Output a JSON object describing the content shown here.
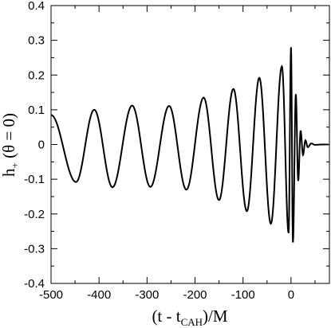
{
  "chart_data": {
    "type": "line",
    "title": "",
    "xlabel": {
      "main": "(t - t",
      "sub": "CAH",
      "tail": ")/M"
    },
    "ylabel": {
      "main": "h",
      "sub": "+",
      "tail": " (θ = 0)"
    },
    "xlim": [
      -500,
      80
    ],
    "ylim": [
      -0.4,
      0.4
    ],
    "grid": false,
    "legend": "none",
    "x_ticks": [
      -500,
      -400,
      -300,
      -200,
      -100,
      0
    ],
    "x_tick_labels": [
      "-500",
      "-400",
      "-300",
      "-200",
      "-100",
      "0"
    ],
    "y_ticks": [
      -0.4,
      -0.3,
      -0.2,
      -0.1,
      0,
      0.1,
      0.2,
      0.3,
      0.4
    ],
    "y_tick_labels": [
      "-0.4",
      "-0.3",
      "-0.2",
      "-0.1",
      "0",
      "0.1",
      "0.2",
      "0.3",
      "0.4"
    ],
    "series": [
      {
        "color": "#000000",
        "extrema": [
          [
            -500,
            0.085
          ],
          [
            -448,
            -0.108
          ],
          [
            -410,
            0.1
          ],
          [
            -372,
            -0.123
          ],
          [
            -331,
            0.112
          ],
          [
            -293,
            -0.122
          ],
          [
            -254,
            0.111
          ],
          [
            -218,
            -0.13
          ],
          [
            -182,
            0.135
          ],
          [
            -150,
            -0.16
          ],
          [
            -120,
            0.16
          ],
          [
            -92,
            -0.192
          ],
          [
            -66,
            0.192
          ],
          [
            -42,
            -0.228
          ],
          [
            -19,
            0.225
          ],
          [
            -5,
            -0.255
          ],
          [
            0,
            0.28
          ],
          [
            4,
            -0.282
          ],
          [
            10,
            0.145
          ],
          [
            15,
            -0.105
          ],
          [
            20,
            0.04
          ],
          [
            25,
            -0.03
          ],
          [
            30,
            0.012
          ],
          [
            35,
            -0.008
          ],
          [
            42,
            0.003
          ],
          [
            50,
            -0.001
          ],
          [
            65,
            0.0
          ],
          [
            78,
            0.0
          ]
        ]
      }
    ]
  }
}
